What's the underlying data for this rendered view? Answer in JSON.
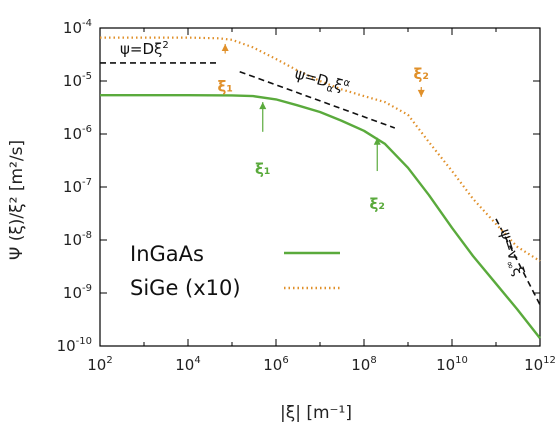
{
  "chart_data": {
    "type": "line",
    "title": "",
    "xlabel": "|ξ| [m⁻¹]",
    "ylabel": "Ψ (ξ)/ξ² [m²/s]",
    "xscale": "log",
    "yscale": "log",
    "xlim": [
      100,
      1000000000000
    ],
    "ylim": [
      1e-10,
      0.0001
    ],
    "grid": false,
    "legend_position": "center-left",
    "x_ticks": [
      {
        "value": 100,
        "base": "10",
        "exp": "2"
      },
      {
        "value": 10000,
        "base": "10",
        "exp": "4"
      },
      {
        "value": 1000000,
        "base": "10",
        "exp": "6"
      },
      {
        "value": 100000000,
        "base": "10",
        "exp": "8"
      },
      {
        "value": 10000000000,
        "base": "10",
        "exp": "10"
      },
      {
        "value": 1000000000000,
        "base": "10",
        "exp": "12"
      }
    ],
    "y_ticks": [
      {
        "value": 0.0001,
        "base": "10",
        "exp": "-4"
      },
      {
        "value": 1e-05,
        "base": "10",
        "exp": "-5"
      },
      {
        "value": 1e-06,
        "base": "10",
        "exp": "-6"
      },
      {
        "value": 1e-07,
        "base": "10",
        "exp": "-7"
      },
      {
        "value": 1e-08,
        "base": "10",
        "exp": "-8"
      },
      {
        "value": 1e-09,
        "base": "10",
        "exp": "-9"
      },
      {
        "value": 1e-10,
        "base": "10",
        "exp": "-10"
      }
    ],
    "series": [
      {
        "name": "InGaAs",
        "color": "#5aaa3c",
        "style": "solid",
        "points": [
          [
            100,
            5.4e-06
          ],
          [
            1000,
            5.4e-06
          ],
          [
            10000,
            5.4e-06
          ],
          [
            100000,
            5.35e-06
          ],
          [
            300000,
            5.2e-06
          ],
          [
            1000000,
            4.5e-06
          ],
          [
            3000000,
            3.5e-06
          ],
          [
            10000000,
            2.6e-06
          ],
          [
            30000000,
            1.8e-06
          ],
          [
            100000000,
            1.15e-06
          ],
          [
            300000000,
            6.5e-07
          ],
          [
            1000000000,
            2.3e-07
          ],
          [
            3000000000,
            7e-08
          ],
          [
            10000000000,
            1.7e-08
          ],
          [
            30000000000,
            5e-09
          ],
          [
            100000000000,
            1.5e-09
          ],
          [
            300000000000,
            5e-10
          ],
          [
            1000000000000,
            1.4e-10
          ]
        ]
      },
      {
        "name": "SiGe (x10)",
        "color": "#e0902a",
        "style": "dotted",
        "points": [
          [
            100,
            6.6e-05
          ],
          [
            1000,
            6.6e-05
          ],
          [
            10000,
            6.6e-05
          ],
          [
            50000,
            6.4e-05
          ],
          [
            100000,
            6e-05
          ],
          [
            300000,
            4.3e-05
          ],
          [
            1000000,
            2.6e-05
          ],
          [
            3000000,
            1.6e-05
          ],
          [
            10000000,
            1e-05
          ],
          [
            30000000,
            7e-06
          ],
          [
            100000000,
            5.2e-06
          ],
          [
            300000000,
            4e-06
          ],
          [
            1000000000,
            2.3e-06
          ],
          [
            3000000000,
            7e-07
          ],
          [
            10000000000,
            2e-07
          ],
          [
            30000000000,
            6e-08
          ],
          [
            100000000000,
            2e-08
          ],
          [
            300000000000,
            7.5e-09
          ],
          [
            1000000000000,
            4e-09
          ]
        ]
      }
    ],
    "reference_lines": [
      {
        "label": "ψ=Dξ²",
        "points": [
          [
            100,
            2.2e-05
          ],
          [
            50000,
            2.2e-05
          ]
        ]
      },
      {
        "label": "ψ=Dαξα",
        "points": [
          [
            150000,
            1.5e-05
          ],
          [
            500000000,
            1.3e-06
          ]
        ]
      },
      {
        "label": "ψ=v∞ξ",
        "points": [
          [
            100000000000,
            2.5e-08
          ],
          [
            1000000000000,
            6e-10
          ]
        ]
      }
    ],
    "annotations": [
      {
        "text": "ξ₁",
        "color": "#e0902a",
        "x": 70000,
        "y": 9e-06
      },
      {
        "text": "ξ₂",
        "color": "#e0902a",
        "x": 2000000000,
        "y": 1e-05
      },
      {
        "text": "ξ₁",
        "color": "#5aaa3c",
        "x": 500000,
        "y": 2.5e-07
      },
      {
        "text": "ξ₂",
        "color": "#5aaa3c",
        "x": 200000000,
        "y": 5.5e-08
      }
    ]
  }
}
